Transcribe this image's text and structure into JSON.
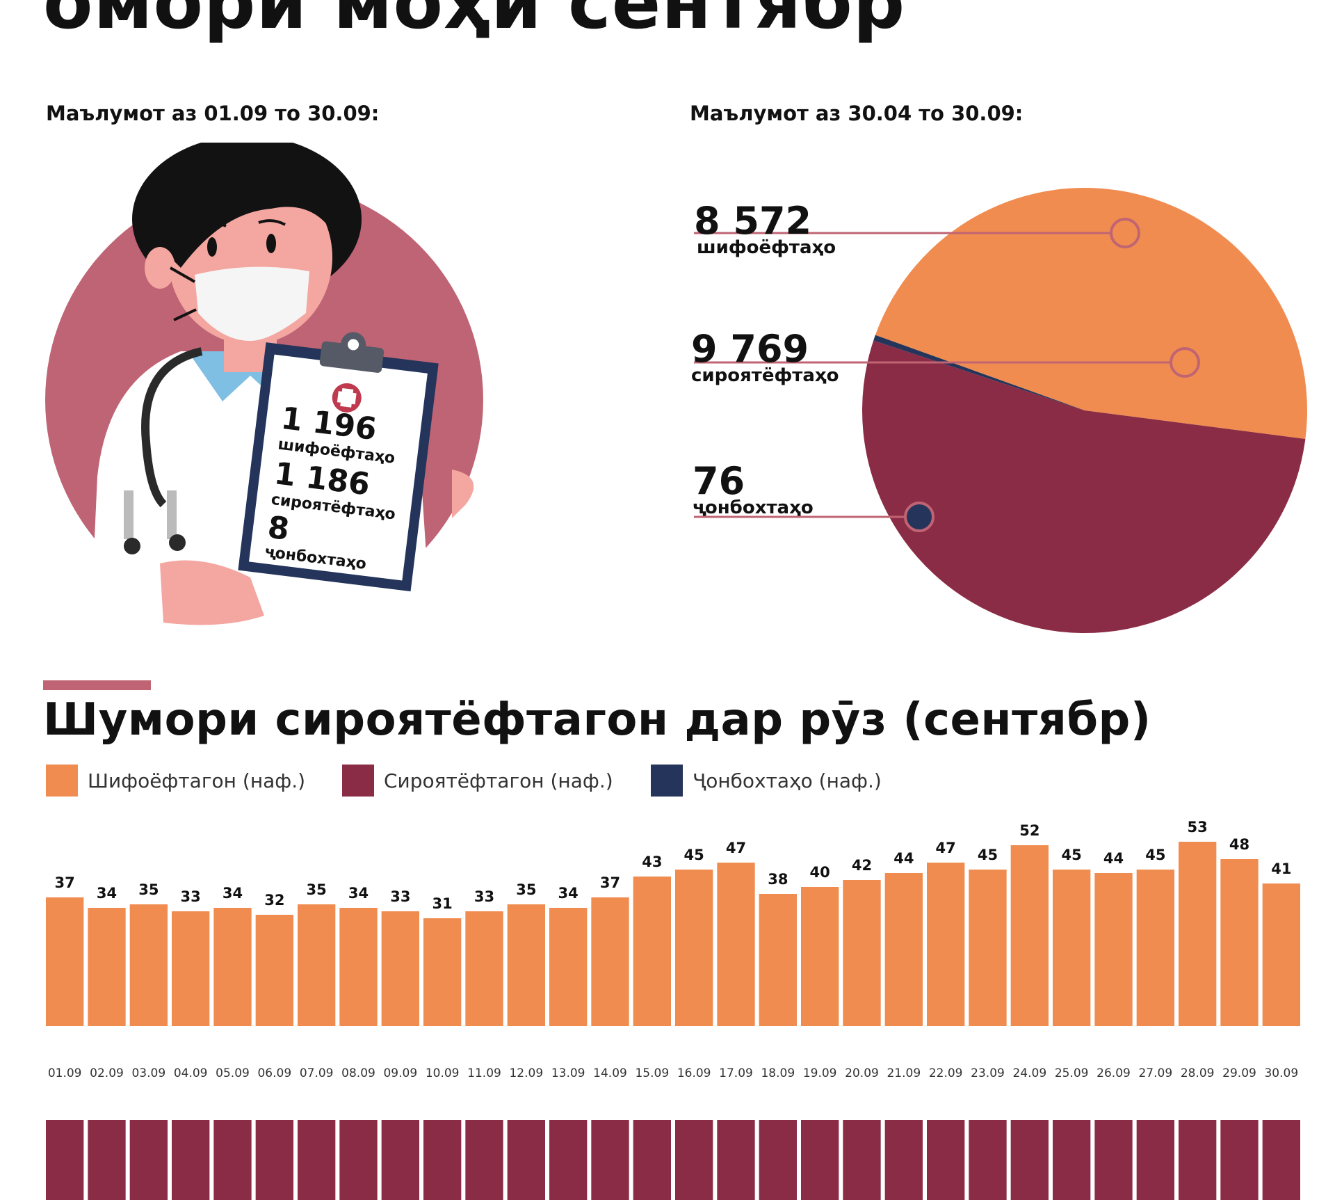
{
  "page": {
    "title": "омори моҳи сентябр",
    "left_subtitle": "Маълумот аз 01.09 то 30.09:",
    "right_subtitle": "Маълумот аз 30.04 то 30.09:"
  },
  "clipboard": {
    "recovered_value": "1 196",
    "recovered_label": "шифоёфтаҳо",
    "infected_value": "1 186",
    "infected_label": "сироятёфтаҳо",
    "deaths_value": "8",
    "deaths_label": "ҷонбохтаҳо"
  },
  "colors": {
    "recovered": "#f08c50",
    "infected": "#8b2c46",
    "deaths": "#24345a",
    "accent_pink": "#c06474"
  },
  "chart_data": [
    {
      "type": "pie",
      "slices": [
        {
          "label": "шифоёфтаҳо",
          "value": 8572,
          "value_text": "8 572",
          "color": "#f08c50"
        },
        {
          "label": "сироятёфтаҳо",
          "value": 9769,
          "value_text": "9 769",
          "color": "#8b2c46"
        },
        {
          "label": "ҷонбохтаҳо",
          "value": 76,
          "value_text": "76",
          "color": "#24345a"
        }
      ]
    },
    {
      "type": "bar",
      "title": "Шумори сироятёфтагон дар рӯз (сентябр)",
      "legend": [
        {
          "label": "Шифоёфтагон (наф.)",
          "color": "#f08c50"
        },
        {
          "label": "Сироятёфтагон (наф.)",
          "color": "#8b2c46"
        },
        {
          "label": "Ҷонбохтаҳо (наф.)",
          "color": "#24345a"
        }
      ],
      "legend_position": "top-left",
      "categories": [
        "01.09",
        "02.09",
        "03.09",
        "04.09",
        "05.09",
        "06.09",
        "07.09",
        "08.09",
        "09.09",
        "10.09",
        "11.09",
        "12.09",
        "13.09",
        "14.09",
        "15.09",
        "16.09",
        "17.09",
        "18.09",
        "19.09",
        "20.09",
        "21.09",
        "22.09",
        "23.09",
        "24.09",
        "25.09",
        "26.09",
        "27.09",
        "28.09",
        "29.09",
        "30.09"
      ],
      "series": [
        {
          "name": "Шифоёфтагон (наф.)",
          "color": "#f08c50",
          "values": [
            37,
            34,
            35,
            33,
            34,
            32,
            35,
            34,
            33,
            31,
            33,
            35,
            34,
            37,
            43,
            45,
            47,
            38,
            40,
            42,
            44,
            47,
            45,
            52,
            45,
            44,
            45,
            53,
            48,
            41
          ]
        }
      ],
      "grid": false
    }
  ]
}
